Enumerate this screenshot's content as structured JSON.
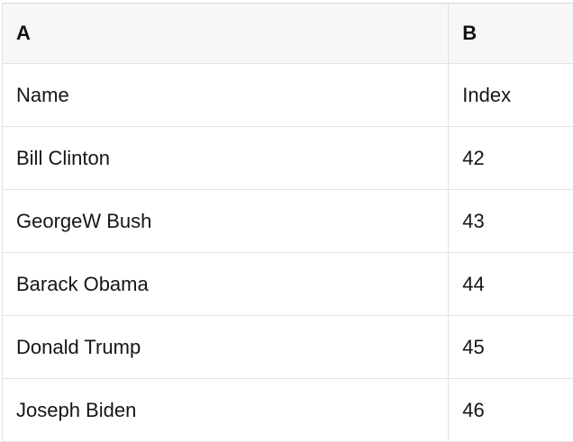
{
  "table": {
    "column_headers": [
      "A",
      "B"
    ],
    "first_row_labels": {
      "name": "Name",
      "index": "Index"
    },
    "rows": [
      [
        "Name",
        "Index"
      ],
      [
        "Bill Clinton",
        "42"
      ],
      [
        "GeorgeW Bush",
        "43"
      ],
      [
        "Barack Obama",
        "44"
      ],
      [
        "Donald Trump",
        "45"
      ],
      [
        "Joseph Biden",
        "46"
      ]
    ]
  },
  "colors": {
    "header_bg": "#f7f7f7",
    "row_bg": "#ffffff",
    "border": "#e2e2e2",
    "border_dark": "#d9d9d9",
    "text": "#161616",
    "header_text": "#111111"
  }
}
